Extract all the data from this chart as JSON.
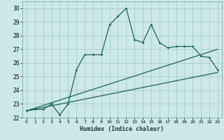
{
  "title": "",
  "xlabel": "Humidex (Indice chaleur)",
  "bg_color": "#cce8e8",
  "grid_color": "#aacccc",
  "line_color": "#1a6655",
  "xlim": [
    -0.5,
    23.5
  ],
  "ylim": [
    22.0,
    30.5
  ],
  "xticks": [
    0,
    1,
    2,
    3,
    4,
    5,
    6,
    7,
    8,
    9,
    10,
    11,
    12,
    13,
    14,
    15,
    16,
    17,
    18,
    19,
    20,
    21,
    22,
    23
  ],
  "yticks": [
    22,
    23,
    24,
    25,
    26,
    27,
    28,
    29,
    30
  ],
  "main_x": [
    0,
    1,
    2,
    3,
    4,
    5,
    6,
    7,
    8,
    9,
    10,
    11,
    12,
    13,
    14,
    15,
    16,
    17,
    18,
    19,
    20,
    21,
    22,
    23
  ],
  "main_y": [
    22.5,
    22.6,
    22.6,
    23.0,
    22.2,
    23.0,
    25.5,
    26.6,
    26.6,
    26.6,
    28.8,
    29.4,
    30.0,
    27.7,
    27.5,
    28.8,
    27.5,
    27.1,
    27.2,
    27.2,
    27.2,
    26.5,
    26.4,
    25.5
  ],
  "line2_x": [
    0,
    23
  ],
  "line2_y": [
    22.5,
    25.3
  ],
  "line3_x": [
    0,
    23
  ],
  "line3_y": [
    22.5,
    27.0
  ]
}
